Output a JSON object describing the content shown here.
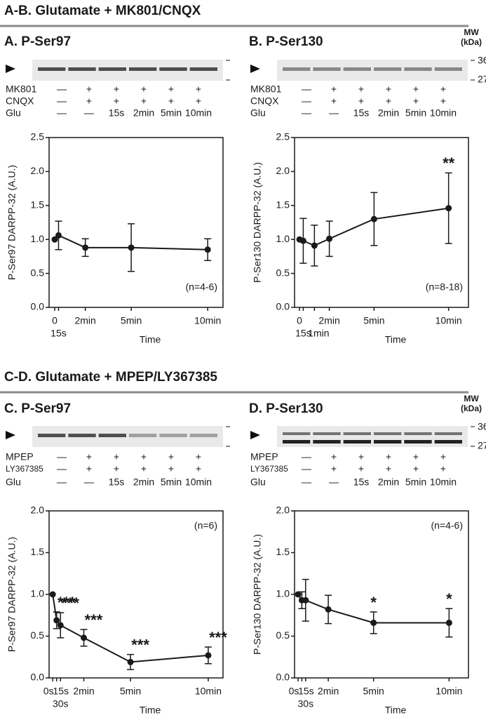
{
  "sections": [
    {
      "title": "A-B. Glutamate + MK801/CNQX"
    },
    {
      "title": "C-D. Glutamate + MPEP/LY367385"
    }
  ],
  "panels": [
    {
      "title": "A. P-Ser97",
      "rows": [
        {
          "name": "MK801",
          "cells": [
            "—",
            "+",
            "+",
            "+",
            "+",
            "+"
          ]
        },
        {
          "name": "CNQX",
          "cells": [
            "—",
            "+",
            "+",
            "+",
            "+",
            "+"
          ]
        },
        {
          "name": "Glu",
          "cells": [
            "—",
            "—",
            "15s",
            "2min",
            "5min",
            "10min"
          ]
        }
      ]
    },
    {
      "title": "B. P-Ser130",
      "mw": {
        "label": "MW",
        "unit": "(kDa)",
        "markers": [
          "36",
          "27"
        ]
      },
      "rows": [
        {
          "name": "MK801",
          "cells": [
            "—",
            "+",
            "+",
            "+",
            "+",
            "+"
          ]
        },
        {
          "name": "CNQX",
          "cells": [
            "—",
            "+",
            "+",
            "+",
            "+",
            "+"
          ]
        },
        {
          "name": "Glu",
          "cells": [
            "—",
            "—",
            "15s",
            "2min",
            "5min",
            "10min"
          ]
        }
      ]
    },
    {
      "title": "C. P-Ser97",
      "rows": [
        {
          "name": "MPEP",
          "cells": [
            "—",
            "+",
            "+",
            "+",
            "+",
            "+"
          ]
        },
        {
          "name": "LY367385",
          "cells": [
            "—",
            "+",
            "+",
            "+",
            "+",
            "+"
          ]
        },
        {
          "name": "Glu",
          "cells": [
            "—",
            "—",
            "15s",
            "2min",
            "5min",
            "10min"
          ]
        }
      ]
    },
    {
      "title": "D. P-Ser130",
      "mw": {
        "label": "MW",
        "unit": "(kDa)",
        "markers": [
          "36",
          "27"
        ]
      },
      "rows": [
        {
          "name": "MPEP",
          "cells": [
            "—",
            "+",
            "+",
            "+",
            "+",
            "+"
          ]
        },
        {
          "name": "LY367385",
          "cells": [
            "—",
            "+",
            "+",
            "+",
            "+",
            "+"
          ]
        },
        {
          "name": "Glu",
          "cells": [
            "—",
            "—",
            "15s",
            "2min",
            "5min",
            "10min"
          ]
        }
      ]
    }
  ],
  "chart_data": [
    {
      "type": "line",
      "color": "#1a1a1a",
      "x": [
        0,
        15,
        120,
        300,
        600
      ],
      "values": [
        1.0,
        1.06,
        0.88,
        0.88,
        0.85
      ],
      "errors": [
        null,
        0.21,
        0.13,
        0.35,
        0.16
      ],
      "xlim": [
        -22,
        660
      ],
      "xticks": [
        0,
        {
          "value": 15,
          "label": "15s"
        },
        {
          "value": 120,
          "label": "2min"
        },
        {
          "value": 300,
          "label": "5min"
        },
        {
          "value": 600,
          "label": "10min"
        }
      ],
      "ylim": [
        0,
        2.5
      ],
      "yticks": [
        {
          "value": 0,
          "label": "0.0"
        },
        0.5,
        {
          "value": 1,
          "label": "1.0"
        },
        1.5,
        {
          "value": 2,
          "label": "2.0"
        },
        2.5
      ],
      "xlabel": "Time",
      "ylabel": "P-Ser97 DARPP-32 (A.U.)",
      "annotation": "(n=4-6)"
    },
    {
      "type": "line",
      "color": "#1a1a1a",
      "x": [
        0,
        15,
        60,
        120,
        300,
        600
      ],
      "values": [
        1.0,
        0.98,
        0.91,
        1.01,
        1.3,
        1.46
      ],
      "errors": [
        null,
        0.33,
        0.3,
        0.26,
        0.39,
        0.52
      ],
      "point_labels": [
        null,
        null,
        null,
        null,
        null,
        "**"
      ],
      "xlim": [
        -20,
        680
      ],
      "xticks": [
        0,
        {
          "value": 15,
          "label": "15s"
        },
        {
          "value": 60,
          "label": "1min"
        },
        {
          "value": 120,
          "label": "2min"
        },
        {
          "value": 300,
          "label": "5min"
        },
        {
          "value": 600,
          "label": "10min"
        }
      ],
      "ylim": [
        0,
        2.5
      ],
      "yticks": [
        {
          "value": 0,
          "label": "0.0"
        },
        0.5,
        {
          "value": 1,
          "label": "1.0"
        },
        1.5,
        {
          "value": 2,
          "label": "2.0"
        },
        2.5
      ],
      "xlabel": "Time",
      "ylabel": "P-Ser130 DARPP-32 (A.U.)",
      "annotation": "(n=8-18)"
    },
    {
      "type": "line",
      "color": "#1a1a1a",
      "x": [
        0,
        15,
        30,
        120,
        300,
        600
      ],
      "values": [
        1.0,
        0.69,
        0.63,
        0.48,
        0.19,
        0.27
      ],
      "errors": [
        null,
        0.1,
        0.15,
        0.1,
        0.09,
        0.1
      ],
      "point_labels": [
        null,
        "***",
        "***",
        "***",
        "***",
        "***"
      ],
      "xlim": [
        -14,
        657
      ],
      "xticks": [
        {
          "value": 0,
          "label": "0s"
        },
        {
          "value": 15,
          "label": "15s"
        },
        {
          "value": 30,
          "label": "30s"
        },
        {
          "value": 120,
          "label": "2min"
        },
        {
          "value": 300,
          "label": "5min"
        },
        {
          "value": 600,
          "label": "10min"
        }
      ],
      "ylim": [
        0,
        2
      ],
      "yticks": [
        {
          "value": 0,
          "label": "0.0"
        },
        0.5,
        {
          "value": 1,
          "label": "1.0"
        },
        1.5,
        {
          "value": 2,
          "label": "2.0"
        }
      ],
      "xlabel": "Time",
      "ylabel": "P-Ser97 DARPP-32 (A.U.)",
      "annotation": "(n=6)"
    },
    {
      "type": "line",
      "color": "#1a1a1a",
      "x": [
        0,
        15,
        30,
        120,
        300,
        600
      ],
      "values": [
        1.0,
        0.93,
        0.93,
        0.82,
        0.66,
        0.66
      ],
      "errors": [
        null,
        0.1,
        0.25,
        0.17,
        0.13,
        0.17
      ],
      "point_labels": [
        null,
        null,
        null,
        null,
        "*",
        "*"
      ],
      "xlim": [
        -14,
        677
      ],
      "xticks": [
        {
          "value": 0,
          "label": "0s"
        },
        {
          "value": 15,
          "label": "15s"
        },
        {
          "value": 30,
          "label": "30s"
        },
        {
          "value": 120,
          "label": "2min"
        },
        {
          "value": 300,
          "label": "5min"
        },
        {
          "value": 600,
          "label": "10min"
        }
      ],
      "ylim": [
        0,
        2
      ],
      "yticks": [
        {
          "value": 0,
          "label": "0.0"
        },
        0.5,
        {
          "value": 1,
          "label": "1.0"
        },
        1.5,
        {
          "value": 2,
          "label": "2.0"
        }
      ],
      "xlabel": "Time",
      "ylabel": "P-Ser130 DARPP-32 (A.U.)",
      "annotation": "(n=4-6)"
    }
  ]
}
